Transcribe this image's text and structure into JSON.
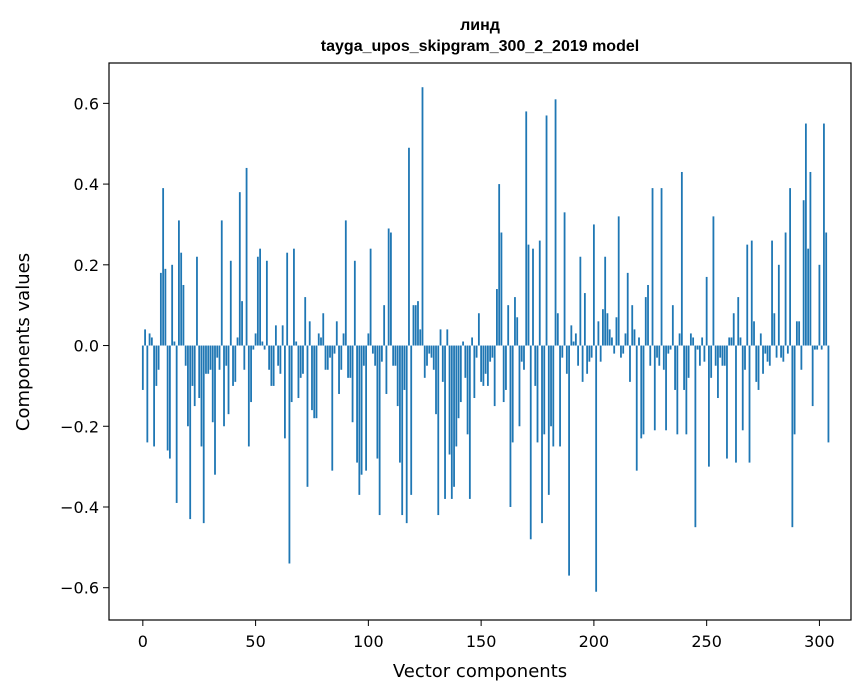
{
  "chart_data": {
    "type": "bar",
    "title": "линд",
    "subtitle": "tayga_upos_skipgram_300_2_2019 model",
    "xlabel": "Vector components",
    "ylabel": "Components values",
    "xlim": [
      -15,
      314
    ],
    "ylim": [
      -0.68,
      0.7
    ],
    "xticks": [
      0,
      50,
      100,
      150,
      200,
      250,
      300
    ],
    "yticks": [
      -0.6,
      -0.4,
      -0.2,
      0.0,
      0.2,
      0.4,
      0.6
    ],
    "xtick_labels": [
      "0",
      "50",
      "100",
      "150",
      "200",
      "250",
      "300"
    ],
    "ytick_labels": [
      "−0.6",
      "−0.4",
      "−0.2",
      "0.0",
      "0.2",
      "0.4",
      "0.6"
    ],
    "bar_color": "#1f77b4",
    "grid": false,
    "values": [
      -0.11,
      0.04,
      -0.24,
      0.03,
      0.02,
      -0.25,
      -0.1,
      -0.06,
      0.18,
      0.39,
      0.19,
      -0.26,
      -0.28,
      0.2,
      0.01,
      -0.39,
      0.31,
      0.23,
      0.15,
      -0.05,
      -0.2,
      -0.43,
      -0.1,
      -0.15,
      0.22,
      -0.13,
      -0.25,
      -0.44,
      -0.07,
      -0.07,
      -0.06,
      -0.19,
      -0.32,
      -0.03,
      -0.06,
      0.31,
      -0.2,
      -0.05,
      -0.17,
      0.21,
      -0.1,
      -0.09,
      0.02,
      0.38,
      0.11,
      -0.06,
      0.44,
      -0.25,
      -0.14,
      -0.01,
      0.03,
      0.22,
      0.24,
      0.01,
      -0.01,
      0.21,
      -0.06,
      -0.1,
      -0.1,
      0.05,
      -0.05,
      -0.07,
      0.05,
      -0.23,
      0.23,
      -0.54,
      -0.14,
      0.24,
      0.01,
      -0.13,
      -0.08,
      -0.07,
      0.12,
      -0.35,
      0.06,
      -0.16,
      -0.18,
      -0.18,
      0.03,
      0.02,
      0.08,
      -0.06,
      -0.06,
      -0.03,
      -0.31,
      -0.02,
      0.06,
      -0.12,
      -0.06,
      0.03,
      0.31,
      -0.08,
      -0.08,
      -0.19,
      0.21,
      -0.29,
      -0.37,
      -0.32,
      -0.05,
      -0.31,
      0.03,
      0.24,
      -0.02,
      -0.05,
      -0.28,
      -0.42,
      -0.04,
      0.1,
      -0.12,
      0.29,
      0.28,
      -0.05,
      -0.05,
      -0.15,
      -0.29,
      -0.42,
      -0.11,
      -0.44,
      0.49,
      -0.37,
      0.1,
      0.1,
      0.11,
      0.04,
      0.64,
      -0.08,
      -0.05,
      -0.02,
      -0.03,
      -0.06,
      -0.17,
      -0.42,
      0.04,
      -0.09,
      -0.38,
      0.04,
      -0.27,
      -0.38,
      -0.35,
      -0.25,
      -0.18,
      -0.14,
      0.01,
      -0.08,
      -0.22,
      -0.38,
      0.02,
      -0.13,
      -0.03,
      0.08,
      -0.09,
      -0.1,
      -0.07,
      -0.1,
      -0.04,
      -0.03,
      -0.15,
      0.14,
      0.4,
      0.28,
      -0.14,
      -0.11,
      0.1,
      -0.4,
      -0.24,
      0.12,
      0.07,
      -0.2,
      -0.04,
      -0.06,
      0.58,
      0.25,
      -0.48,
      0.24,
      -0.1,
      -0.24,
      0.26,
      -0.44,
      -0.22,
      0.57,
      -0.37,
      -0.2,
      -0.25,
      0.61,
      0.08,
      -0.25,
      -0.03,
      0.33,
      -0.07,
      -0.57,
      0.05,
      0.01,
      0.03,
      -0.05,
      0.22,
      -0.09,
      0.13,
      -0.07,
      -0.04,
      -0.03,
      0.3,
      -0.61,
      0.06,
      -0.04,
      0.09,
      0.22,
      0.08,
      0.04,
      0.02,
      -0.02,
      0.07,
      0.32,
      -0.03,
      -0.02,
      0.03,
      0.18,
      -0.09,
      0.1,
      0.04,
      -0.31,
      0.02,
      -0.23,
      -0.22,
      0.12,
      0.15,
      -0.05,
      0.39,
      -0.21,
      -0.03,
      -0.05,
      0.39,
      -0.06,
      -0.21,
      -0.02,
      -0.01,
      0.1,
      -0.11,
      -0.22,
      0.03,
      0.43,
      -0.11,
      -0.22,
      -0.08,
      0.03,
      0.02,
      -0.45,
      -0.01,
      -0.05,
      0.02,
      -0.04,
      0.17,
      -0.3,
      -0.08,
      0.32,
      -0.05,
      -0.13,
      -0.03,
      -0.05,
      -0.05,
      -0.28,
      0.02,
      0.02,
      0.08,
      -0.29,
      0.12,
      0.02,
      -0.21,
      -0.06,
      0.25,
      -0.29,
      0.26,
      0.06,
      -0.09,
      -0.11,
      0.03,
      -0.07,
      -0.02,
      -0.04,
      -0.05,
      0.26,
      0.08,
      -0.03,
      0.2,
      -0.03,
      -0.04,
      0.28,
      -0.02,
      0.39,
      -0.45,
      -0.22,
      0.06,
      0.06,
      -0.06,
      0.36,
      0.55,
      0.24,
      0.43,
      -0.15,
      -0.01,
      -0.01,
      0.2,
      -0.01,
      0.55,
      0.28,
      -0.24
    ]
  }
}
